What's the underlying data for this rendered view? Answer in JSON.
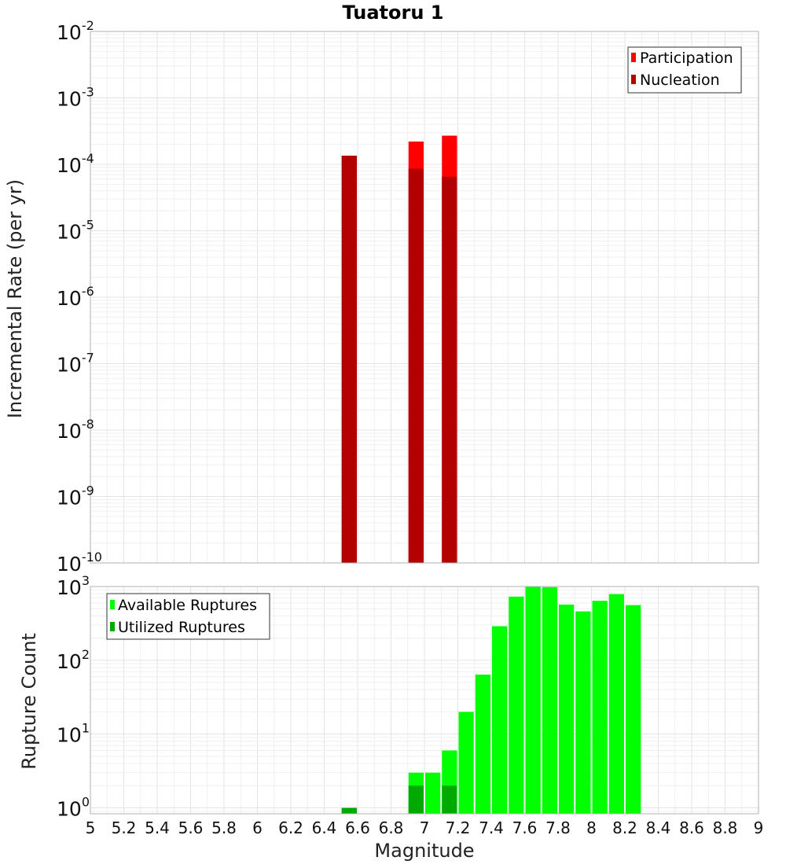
{
  "chart_data": [
    {
      "type": "bar",
      "title": "Tuatoru 1",
      "xlabel": "Magnitude",
      "ylabel": "Incremental Rate (per yr)",
      "yscale": "log",
      "xlim": [
        5,
        9
      ],
      "ylim_exp": [
        -10,
        -2
      ],
      "y_ticks": [
        {
          "base": "10",
          "exp": "-2"
        },
        {
          "base": "10",
          "exp": "-3"
        },
        {
          "base": "10",
          "exp": "-4"
        },
        {
          "base": "10",
          "exp": "-5"
        },
        {
          "base": "10",
          "exp": "-6"
        },
        {
          "base": "10",
          "exp": "-7"
        },
        {
          "base": "10",
          "exp": "-8"
        },
        {
          "base": "10",
          "exp": "-9"
        },
        {
          "base": "10",
          "exp": "-10"
        }
      ],
      "legend": [
        {
          "label": "Participation",
          "color": "#ff0000"
        },
        {
          "label": "Nucleation",
          "color": "#b30000"
        }
      ],
      "legend_position": "top-right",
      "bin_width": 0.1,
      "series": [
        {
          "name": "Participation",
          "color": "#ff0000",
          "x": [
            6.55,
            6.95,
            7.15
          ],
          "values": [
            0.000135,
            0.00022,
            0.00027
          ]
        },
        {
          "name": "Nucleation",
          "color": "#b30000",
          "x": [
            6.55,
            6.95,
            7.15
          ],
          "values": [
            0.000135,
            8.6e-05,
            6.5e-05
          ]
        }
      ]
    },
    {
      "type": "bar",
      "xlabel": "Magnitude",
      "ylabel": "Rupture Count",
      "yscale": "log",
      "xlim": [
        5,
        9
      ],
      "ylim_exp": [
        -0.08,
        3
      ],
      "y_ticks": [
        {
          "base": "10",
          "exp": "3"
        },
        {
          "base": "10",
          "exp": "2"
        },
        {
          "base": "10",
          "exp": "1"
        },
        {
          "base": "10",
          "exp": "0"
        }
      ],
      "x_ticks": [
        "5",
        "5.2",
        "5.4",
        "5.6",
        "5.8",
        "6",
        "6.2",
        "6.4",
        "6.6",
        "6.8",
        "7",
        "7.2",
        "7.4",
        "7.6",
        "7.8",
        "8",
        "8.2",
        "8.4",
        "8.6",
        "8.8",
        "9"
      ],
      "legend": [
        {
          "label": "Available Ruptures",
          "color": "#00ff00"
        },
        {
          "label": "Utilized Ruptures",
          "color": "#00aa00"
        }
      ],
      "legend_position": "top-left",
      "bin_width": 0.1,
      "series": [
        {
          "name": "Available Ruptures",
          "color": "#00ff00",
          "x": [
            6.55,
            6.95,
            7.05,
            7.15,
            7.25,
            7.35,
            7.45,
            7.55,
            7.65,
            7.75,
            7.85,
            7.95,
            8.05,
            8.15,
            8.25
          ],
          "values": [
            1,
            3,
            3,
            6,
            20,
            64,
            290,
            730,
            1000,
            980,
            570,
            460,
            640,
            790,
            560
          ]
        },
        {
          "name": "Utilized Ruptures",
          "color": "#00aa00",
          "x": [
            6.55,
            6.95,
            7.15
          ],
          "values": [
            1,
            2,
            2
          ]
        }
      ]
    }
  ]
}
